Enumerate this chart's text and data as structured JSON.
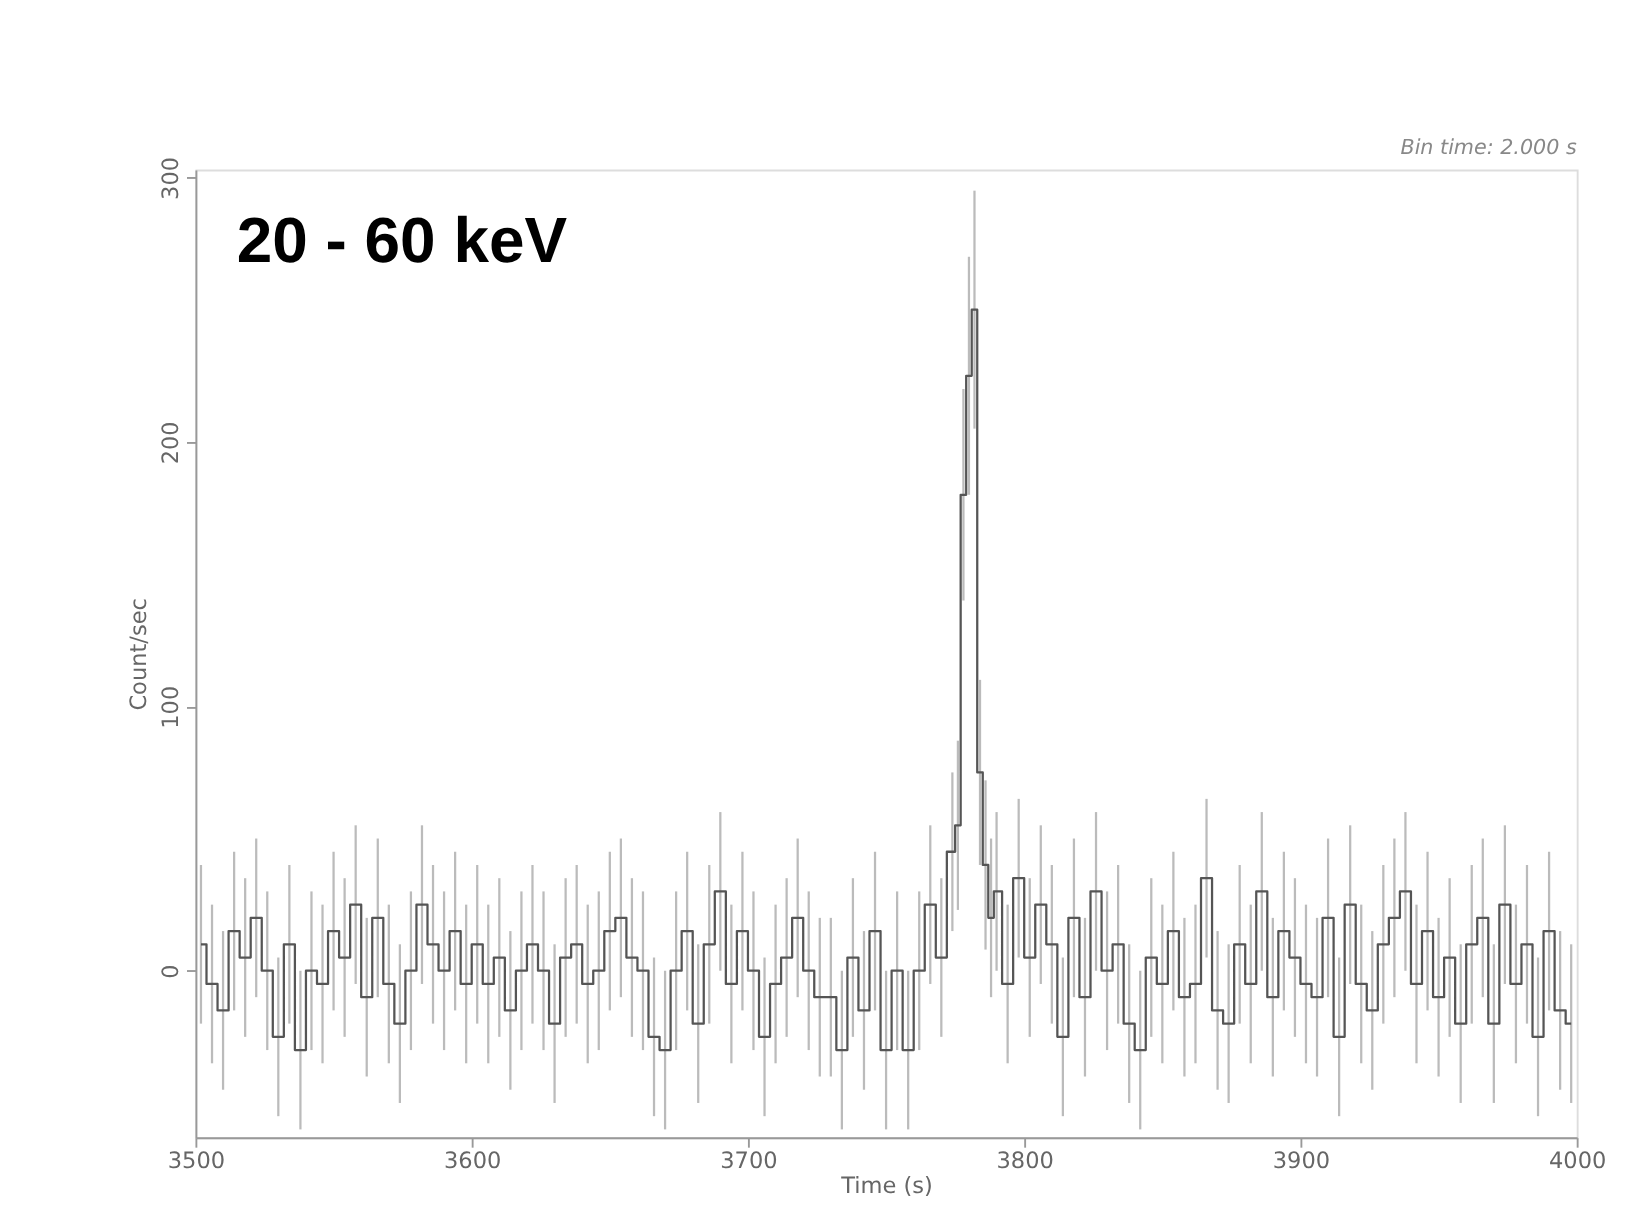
{
  "chart_data": {
    "type": "step",
    "xlabel": "Time (s)",
    "ylabel": "Count/sec",
    "annotations": [
      "20 - 60 keV",
      "Bin time:   2.000   s"
    ],
    "xlim": [
      3500,
      4000
    ],
    "xticks": [
      3500,
      3600,
      3700,
      3800,
      3900,
      4000
    ],
    "ylim": [
      -63,
      303
    ],
    "yticks": [
      0,
      100,
      200,
      300
    ],
    "grid": false,
    "marker": "none",
    "line_style": "solid",
    "series": [
      {
        "color": "#555555",
        "x": [
          3502,
          3506,
          3510,
          3514,
          3518,
          3522,
          3526,
          3530,
          3534,
          3538,
          3542,
          3546,
          3550,
          3554,
          3558,
          3562,
          3566,
          3570,
          3574,
          3578,
          3582,
          3586,
          3590,
          3594,
          3598,
          3602,
          3606,
          3610,
          3614,
          3618,
          3622,
          3626,
          3630,
          3634,
          3638,
          3642,
          3646,
          3650,
          3654,
          3658,
          3662,
          3666,
          3670,
          3674,
          3678,
          3682,
          3686,
          3690,
          3694,
          3698,
          3702,
          3706,
          3710,
          3714,
          3718,
          3722,
          3726,
          3730,
          3734,
          3738,
          3742,
          3746,
          3750,
          3754,
          3758,
          3762,
          3766,
          3770,
          3774,
          3776,
          3778,
          3780,
          3782,
          3784,
          3786,
          3788,
          3790,
          3794,
          3798,
          3802,
          3806,
          3810,
          3814,
          3818,
          3822,
          3826,
          3830,
          3834,
          3838,
          3842,
          3846,
          3850,
          3854,
          3858,
          3862,
          3866,
          3870,
          3874,
          3878,
          3882,
          3886,
          3890,
          3894,
          3898,
          3902,
          3906,
          3910,
          3914,
          3918,
          3922,
          3926,
          3930,
          3934,
          3938,
          3942,
          3946,
          3950,
          3954,
          3958,
          3962,
          3966,
          3970,
          3974,
          3978,
          3982,
          3986,
          3990,
          3994,
          3998
        ],
        "values": [
          10,
          -5,
          -15,
          15,
          5,
          20,
          0,
          -25,
          10,
          -30,
          0,
          -5,
          15,
          5,
          25,
          -10,
          20,
          -5,
          -20,
          0,
          25,
          10,
          0,
          15,
          -5,
          10,
          -5,
          5,
          -15,
          0,
          10,
          0,
          -20,
          5,
          10,
          -5,
          0,
          15,
          20,
          5,
          0,
          -25,
          -30,
          0,
          15,
          -20,
          10,
          30,
          -5,
          15,
          0,
          -25,
          -5,
          5,
          20,
          0,
          -10,
          -10,
          -30,
          5,
          -15,
          15,
          -30,
          0,
          -30,
          0,
          25,
          5,
          45,
          55,
          180,
          225,
          250,
          75,
          40,
          20,
          30,
          -5,
          35,
          5,
          25,
          10,
          -25,
          20,
          -10,
          30,
          0,
          10,
          -20,
          -30,
          5,
          -5,
          15,
          -10,
          -5,
          35,
          -15,
          -20,
          10,
          -5,
          30,
          -10,
          15,
          5,
          -5,
          -10,
          20,
          -25,
          25,
          -5,
          -15,
          10,
          20,
          30,
          -5,
          15,
          -10,
          5,
          -20,
          10,
          20,
          -20,
          25,
          -5,
          10,
          -25,
          15,
          -15,
          -20
        ],
        "errors": [
          30,
          30,
          30,
          30,
          30,
          30,
          30,
          30,
          30,
          30,
          30,
          30,
          30,
          30,
          30,
          30,
          30,
          30,
          30,
          30,
          30,
          30,
          30,
          30,
          30,
          30,
          30,
          30,
          30,
          30,
          30,
          30,
          30,
          30,
          30,
          30,
          30,
          30,
          30,
          30,
          30,
          30,
          30,
          30,
          30,
          30,
          30,
          30,
          30,
          30,
          30,
          30,
          30,
          30,
          30,
          30,
          30,
          30,
          30,
          30,
          30,
          30,
          30,
          30,
          30,
          30,
          30,
          30,
          30,
          32,
          40,
          45,
          45,
          35,
          32,
          30,
          30,
          30,
          30,
          30,
          30,
          30,
          30,
          30,
          30,
          30,
          30,
          30,
          30,
          30,
          30,
          30,
          30,
          30,
          30,
          30,
          30,
          30,
          30,
          30,
          30,
          30,
          30,
          30,
          30,
          30,
          30,
          30,
          30,
          30,
          30,
          30,
          30,
          30,
          30,
          30,
          30,
          30,
          30,
          30,
          30,
          30,
          30,
          30,
          30,
          30,
          30,
          30,
          30
        ]
      }
    ]
  }
}
